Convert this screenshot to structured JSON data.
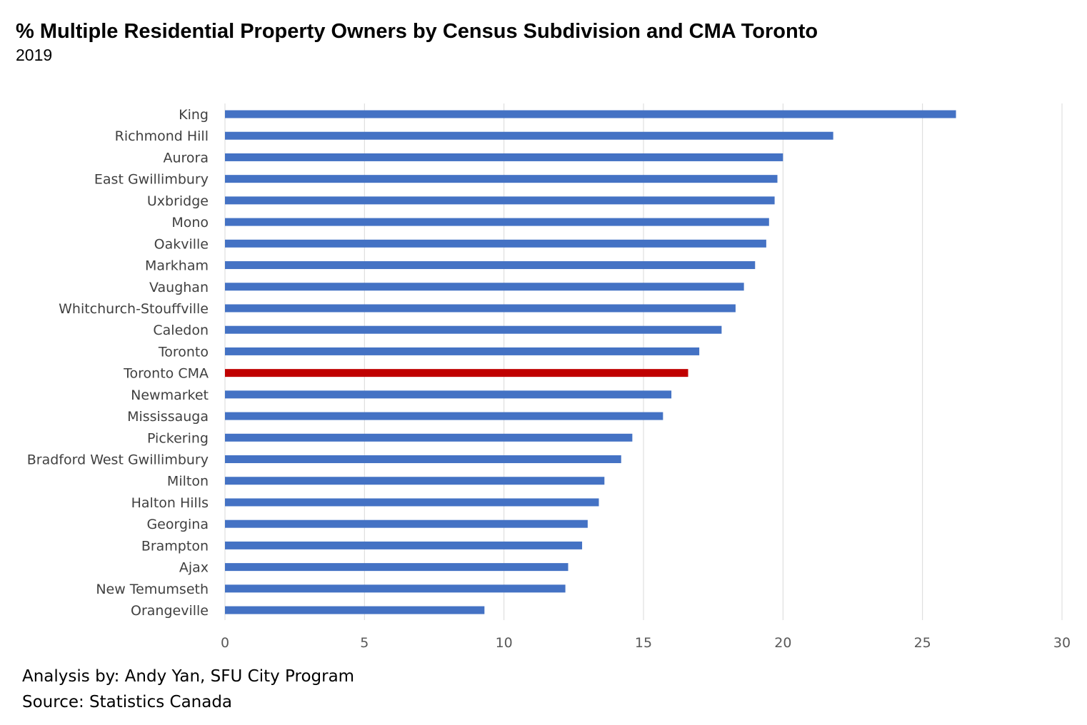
{
  "colors": {
    "bar": "#4472c4",
    "highlight": "#c00000",
    "grid": "#d9d9d9"
  },
  "chart_data": {
    "type": "bar",
    "orientation": "horizontal",
    "title": "% Multiple Residential Property Owners by Census Subdivision and CMA Toronto",
    "subtitle": "2019",
    "xlabel": "",
    "ylabel": "",
    "xlim": [
      0,
      30
    ],
    "xticks": [
      0,
      5,
      10,
      15,
      20,
      25,
      30
    ],
    "grid": true,
    "highlight_category": "Toronto CMA",
    "categories": [
      "King",
      "Richmond Hill",
      "Aurora",
      "East Gwillimbury",
      "Uxbridge",
      "Mono",
      "Oakville",
      "Markham",
      "Vaughan",
      "Whitchurch-Stouffville",
      "Caledon",
      "Toronto",
      "Toronto CMA",
      "Newmarket",
      "Mississauga",
      "Pickering",
      "Bradford West Gwillimbury",
      "Milton",
      "Halton Hills",
      "Georgina",
      "Brampton",
      "Ajax",
      "New Temumseth",
      "Orangeville"
    ],
    "values": [
      26.2,
      21.8,
      20.0,
      19.8,
      19.7,
      19.5,
      19.4,
      19.0,
      18.6,
      18.3,
      17.8,
      17.0,
      16.6,
      16.0,
      15.7,
      14.6,
      14.2,
      13.6,
      13.4,
      13.0,
      12.8,
      12.3,
      12.2,
      9.3
    ]
  },
  "footer": {
    "analysis": "Analysis by: Andy Yan, SFU City Program",
    "source": "Source: Statistics Canada"
  }
}
